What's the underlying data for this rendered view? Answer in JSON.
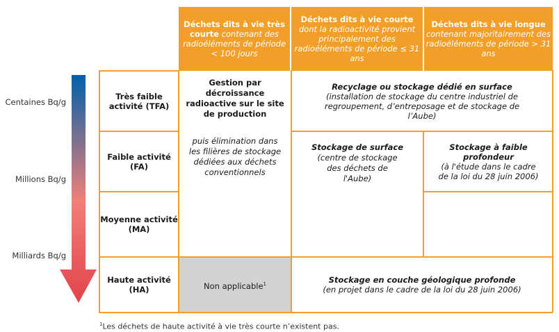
{
  "scale": {
    "labels": [
      "Centaines Bq/g",
      "Millions Bq/g",
      "Milliards Bq/g"
    ],
    "arrow_gradient": [
      "#0060aa",
      "#f08078",
      "#e2434a"
    ]
  },
  "headers": [
    {
      "bold": "Déchets dits à vie très courte",
      "italic": "contenant des radioéléments de période < 100 jours"
    },
    {
      "bold": "Déchets dits à vie courte",
      "italic": "dont la radioactivité provient principalement des radioéléments de période ≤ 31 ans"
    },
    {
      "bold": "Déchets dits à vie longue",
      "italic": "contenant majoritairement des radioéléments de période > 31 ans"
    }
  ],
  "rows": [
    "Très faible activité (TFA)",
    "Faible activité (FA)",
    "Moyenne activité (MA)",
    "Haute activité (HA)"
  ],
  "cells": {
    "vtc_main": {
      "bold": "Gestion par décroissance radioactive sur le site de production",
      "italic": "puis élimination dans les filières de stockage dédiées aux déchets conventionnels"
    },
    "vtc_ha": {
      "text": "Non applicable",
      "sup": "1"
    },
    "tfa": {
      "bold": "Recyclage ou stockage dédié en surface",
      "italic": "(installation de stockage du centre industriel de regroupement, d’entreposage et de stockage de l’Aube)"
    },
    "fa_ma_vc": {
      "bold": "Stockage de surface",
      "italic": "(centre de stockage des déchets de l'Aube)"
    },
    "fa_vl": {
      "bold": "Stockage à faible profondeur",
      "italic": "(à l'étude dans le cadre de la loi du 28 juin 2006)"
    },
    "ha": {
      "bold": "Stockage en couche géologique profonde",
      "italic": "(en projet dans le cadre de la loi du 28 juin 2006)"
    }
  },
  "footnote": {
    "sup": "1",
    "text": "Les déchets de haute activité à vie très courte n’existent pas."
  },
  "colors": {
    "accent": "#f29f2a",
    "na_bg": "#d1d2d4"
  }
}
